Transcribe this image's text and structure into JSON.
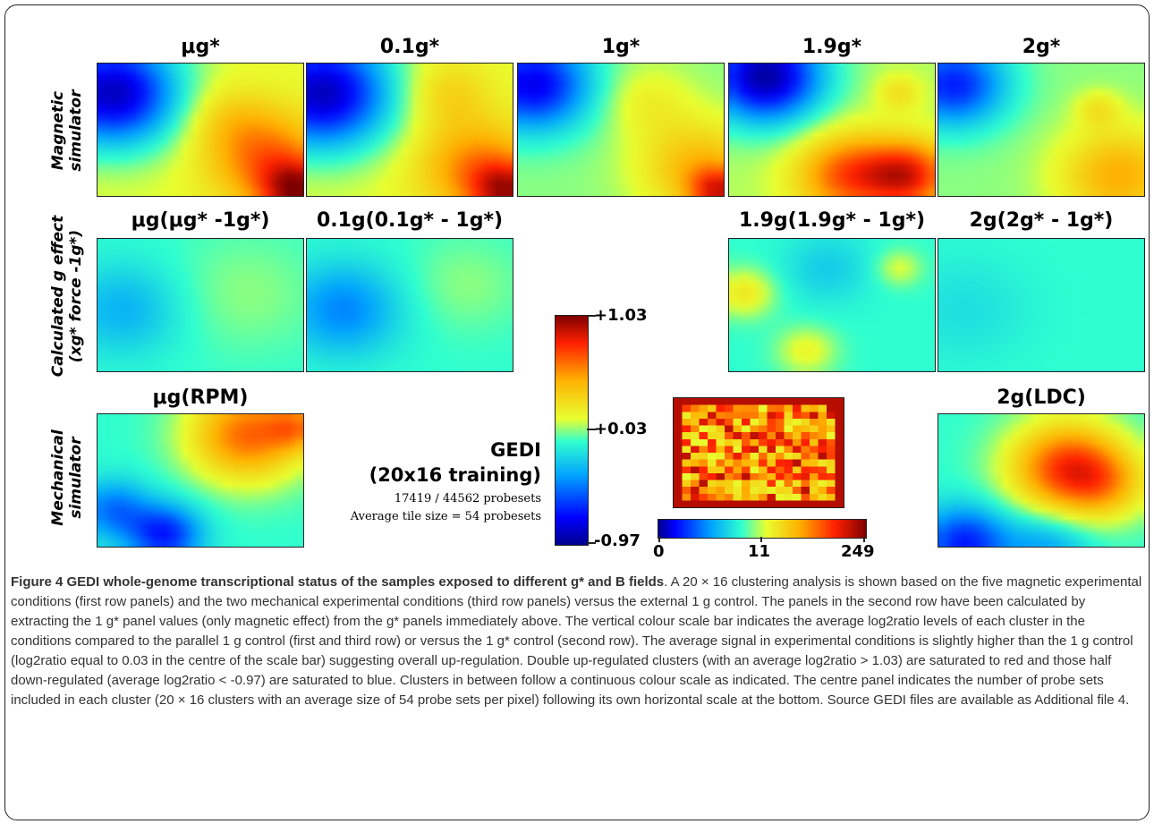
{
  "row_labels": {
    "row1_line1": "Magnetic",
    "row1_line2": "simulator",
    "row2_line1": "Calculated g effect",
    "row2_line2": "(xg* force -1g*)",
    "row3_line1": "Mechanical",
    "row3_line2": "simulator"
  },
  "panels": {
    "r1c1": "μg*",
    "r1c2": "0.1g*",
    "r1c3": "1g*",
    "r1c4": "1.9g*",
    "r1c5": "2g*",
    "r2c1": "μg(μg* -1g*)",
    "r2c2": "0.1g(0.1g* - 1g*)",
    "r2c4": "1.9g(1.9g* - 1g*)",
    "r2c5": "2g(2g* - 1g*)",
    "r3c1": "μg(RPM)",
    "r3c5": "2g(LDC)"
  },
  "gedi": {
    "title_line1": "GEDI",
    "title_line2": "(20x16 training)",
    "probesets": "17419 / 44562 probesets",
    "tile_size": "Average tile size = 54 probesets"
  },
  "vertical_scale": {
    "top": "+1.03",
    "middle": "+0.03",
    "bottom": "-0.97"
  },
  "horizontal_scale": {
    "left": "0",
    "middle": "11",
    "right": "249"
  },
  "caption": {
    "lead": "Figure 4 GEDI whole-genome transcriptional status of the samples exposed to different g* and B fields",
    "body": ". A 20 × 16 clustering analysis is shown based on the five magnetic experimental conditions (first row panels) and the two mechanical experimental conditions (third row panels) versus the external 1 g control. The panels in the second row have been calculated by extracting the 1 g* panel values (only magnetic effect) from the g* panels immediately above. The vertical colour scale bar indicates the average log2ratio levels of each cluster in the conditions compared to the parallel 1 g control (first and third row) or versus the 1 g* control (second row). The average signal in experimental conditions is slightly higher than the 1 g control (log2ratio equal to 0.03 in the centre of the scale bar) suggesting overall up-regulation. Double up-regulated clusters (with an average log2ratio > 1.03) are saturated to red and those half down-regulated (average log2ratio < -0.97) are saturated to blue. Clusters in between follow a continuous colour scale as indicated. The centre panel indicates the number of probe sets included in each cluster (20 × 16 clusters with an average size of 54 probe sets per pixel) following its own horizontal scale at the bottom. Source GEDI files are available as Additional file 4."
  }
}
